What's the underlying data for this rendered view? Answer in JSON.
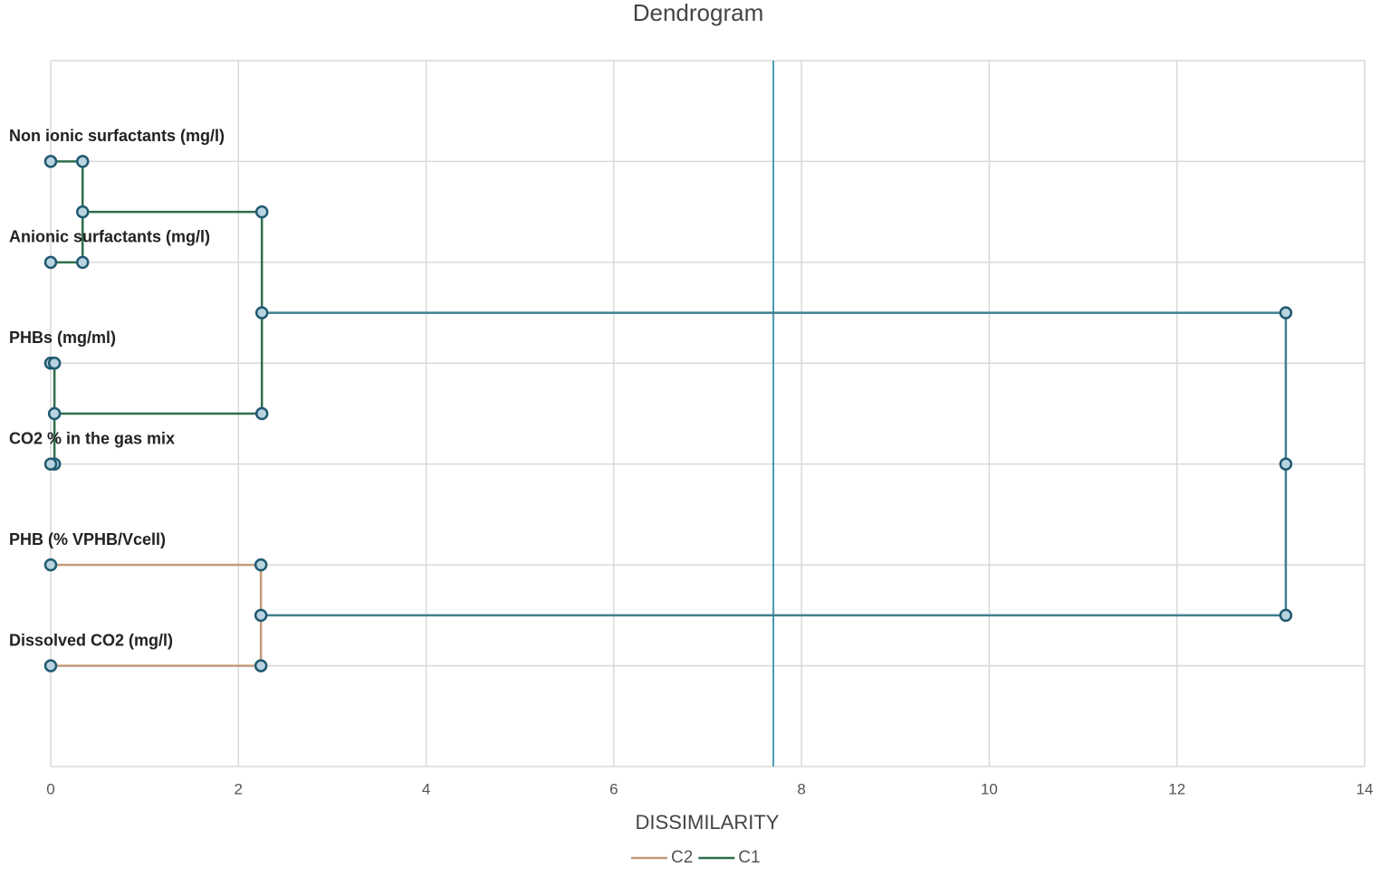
{
  "chart_data": {
    "type": "dendrogram",
    "title": "Dendrogram",
    "x_label": "DISSIMILARITY",
    "xlim": [
      0,
      14
    ],
    "xticks": [
      0,
      2,
      4,
      6,
      8,
      10,
      12,
      14
    ],
    "ylim": [
      0,
      7
    ],
    "yticks": [
      0,
      1,
      2,
      3,
      4,
      5,
      6,
      7
    ],
    "y_tick_labels": false,
    "grid": true,
    "leaves": [
      {
        "label": "Non ionic surfactants (mg/l)",
        "y": 6
      },
      {
        "label": "Anionic surfactants (mg/l)",
        "y": 5
      },
      {
        "label": "PHBs (mg/ml)",
        "y": 4
      },
      {
        "label": "CO2 % in the gas mix",
        "y": 3
      },
      {
        "label": "PHB (% VPHB/Vcell)",
        "y": 2
      },
      {
        "label": "Dissolved CO2 (mg/l)",
        "y": 1
      }
    ],
    "cutoff": 7.7,
    "cutoff_color": "#4a9bb5",
    "series": [
      {
        "color": "#3f7f8f",
        "x": [
          2.25,
          13.16,
          13.16,
          13.16,
          2.24
        ],
        "y": [
          4.5,
          4.5,
          3,
          1.5,
          1.5
        ]
      },
      {
        "name": "C2",
        "color": "#c49a7a",
        "x": [
          0,
          2.24,
          2.24,
          0
        ],
        "y": [
          2,
          2,
          1,
          1
        ]
      },
      {
        "name": "C1",
        "color": "#2f6e4e",
        "x": [
          0,
          0.34,
          0.34,
          0,
          null,
          0.34,
          2.25,
          2.25,
          0.04,
          null,
          0,
          0.04,
          0.04,
          0
        ],
        "y": [
          6,
          6,
          5,
          5,
          null,
          5.5,
          5.5,
          3.5,
          3.5,
          null,
          4,
          4,
          3,
          3
        ]
      }
    ],
    "legend_order": [
      1,
      2
    ]
  }
}
